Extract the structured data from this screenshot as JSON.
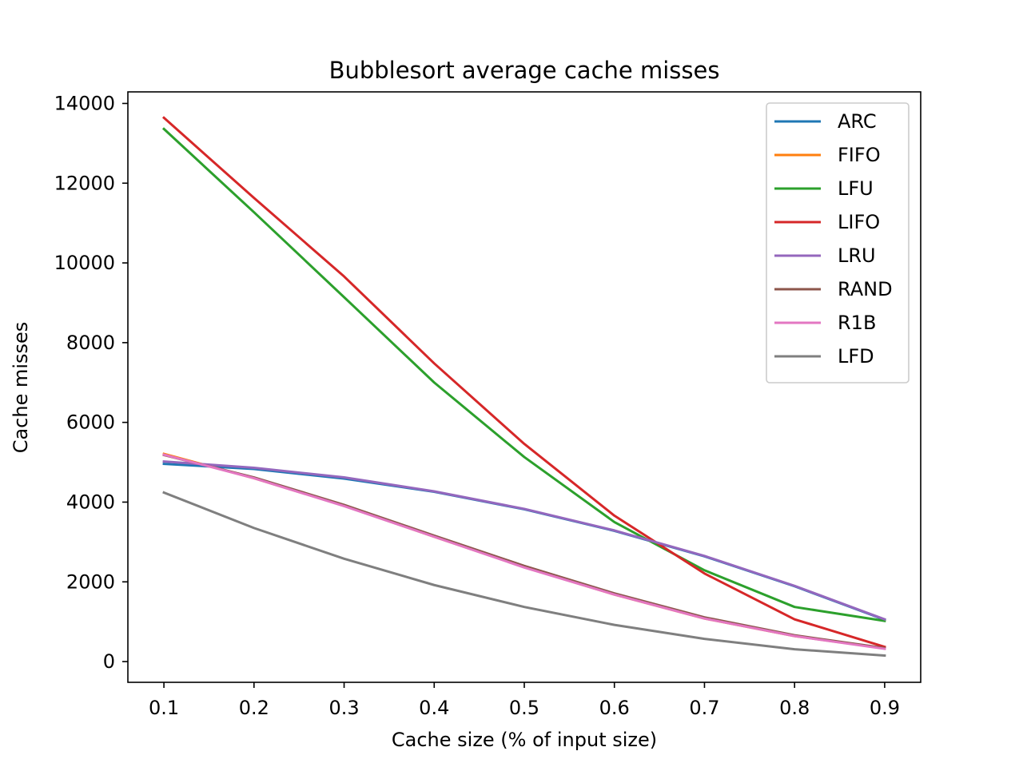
{
  "chart_data": {
    "type": "line",
    "title": "Bubblesort average cache misses",
    "xlabel": "Cache size (% of input size)",
    "ylabel": "Cache misses",
    "x": [
      0.1,
      0.2,
      0.3,
      0.4,
      0.5,
      0.6,
      0.7,
      0.8,
      0.9
    ],
    "x_ticks": [
      "0.1",
      "0.2",
      "0.3",
      "0.4",
      "0.5",
      "0.6",
      "0.7",
      "0.8",
      "0.9"
    ],
    "y_ticks": [
      "0",
      "2000",
      "4000",
      "6000",
      "8000",
      "10000",
      "12000",
      "14000"
    ],
    "xlim": [
      0.06,
      0.94
    ],
    "ylim": [
      -520,
      14290
    ],
    "grid": false,
    "legend_position": "top-right",
    "series": [
      {
        "name": "ARC",
        "color": "#1f77b4",
        "values": [
          4960,
          4830,
          4590,
          4260,
          3820,
          3280,
          2640,
          1890,
          1050
        ]
      },
      {
        "name": "FIFO",
        "color": "#ff7f0e",
        "values": [
          5210,
          4600,
          3910,
          3130,
          2370,
          1680,
          1080,
          640,
          330
        ]
      },
      {
        "name": "LFU",
        "color": "#2ca02c",
        "values": [
          13360,
          11270,
          9140,
          7000,
          5130,
          3500,
          2290,
          1370,
          1020
        ]
      },
      {
        "name": "LIFO",
        "color": "#d62728",
        "values": [
          13640,
          11630,
          9660,
          7480,
          5460,
          3660,
          2210,
          1060,
          370
        ]
      },
      {
        "name": "LRU",
        "color": "#9467bd",
        "values": [
          5020,
          4860,
          4620,
          4270,
          3830,
          3290,
          2650,
          1900,
          1060
        ]
      },
      {
        "name": "RAND",
        "color": "#8c564b",
        "values": [
          5180,
          4620,
          3930,
          3160,
          2400,
          1710,
          1110,
          660,
          340
        ]
      },
      {
        "name": "R1B",
        "color": "#e377c2",
        "values": [
          5190,
          4600,
          3900,
          3130,
          2360,
          1680,
          1080,
          640,
          320
        ]
      },
      {
        "name": "LFD",
        "color": "#7f7f7f",
        "values": [
          4240,
          3350,
          2580,
          1920,
          1370,
          920,
          570,
          310,
          150
        ]
      }
    ]
  }
}
